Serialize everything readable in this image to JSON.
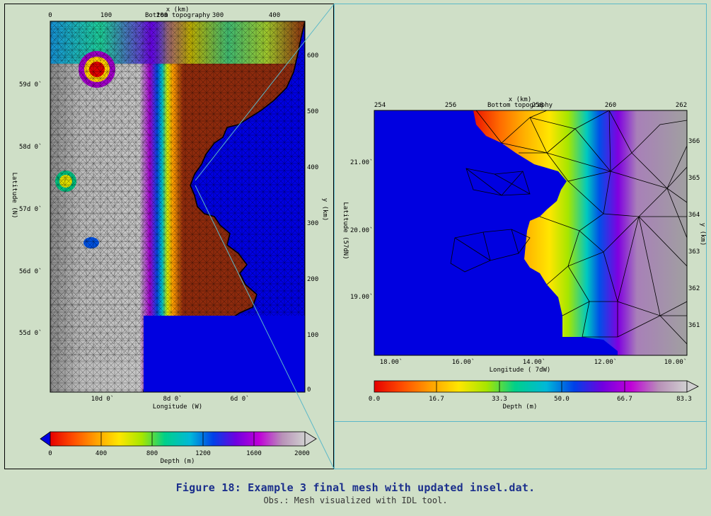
{
  "chart_data": [
    {
      "type": "heatmap",
      "title": "Bottom topography",
      "xlabel": "Longitude (W)",
      "ylabel": "Latitude (N)",
      "x_km_label": "x (km)",
      "y_km_label": "y (km)",
      "x_km_ticks": [
        "0",
        "100",
        "200",
        "300",
        "400"
      ],
      "y_km_ticks": [
        "0",
        "100",
        "200",
        "300",
        "400",
        "500",
        "600"
      ],
      "lon_ticks": [
        "10d 0`",
        "8d 0`",
        "6d 0`"
      ],
      "lat_ticks": [
        "59d 0`",
        "58d 0`",
        "57d 0`",
        "56d 0`",
        "55d 0`"
      ],
      "colorbar": {
        "label": "Depth (m)",
        "range": [
          0,
          2000
        ],
        "ticks": [
          "0",
          "400",
          "800",
          "1200",
          "1600",
          "2000"
        ],
        "colors": [
          "#e60000",
          "#ff4d00",
          "#ffa000",
          "#ffe600",
          "#a6e600",
          "#00d08a",
          "#00b8d8",
          "#0040e8",
          "#7000e0",
          "#c000d8",
          "#b890b8",
          "#d0d0d0"
        ]
      }
    },
    {
      "type": "heatmap",
      "title": "Bottom topography",
      "xlabel": "Longitude ( 7dW)",
      "ylabel": "Latitude (57dN)",
      "x_km_label": "x (km)",
      "y_km_label": "y (km)",
      "x_km_ticks": [
        "254",
        "256",
        "258",
        "260",
        "262"
      ],
      "y_km_ticks": [
        "366",
        "365",
        "364",
        "363",
        "362",
        "361"
      ],
      "lon_ticks": [
        "18.00`",
        "16.00`",
        "14.00`",
        "12.00`",
        "10.00`"
      ],
      "lat_ticks": [
        "21.00`",
        "20.00`",
        "19.00`"
      ],
      "colorbar": {
        "label": "Depth (m)",
        "range": [
          0,
          83.3
        ],
        "ticks": [
          "0.0",
          "16.7",
          "33.3",
          "50.0",
          "66.7",
          "83.3"
        ],
        "colors": [
          "#e60000",
          "#ff4d00",
          "#ffa000",
          "#ffe600",
          "#a6e600",
          "#00d08a",
          "#00b8d8",
          "#0040e8",
          "#7000e0",
          "#c000d8",
          "#b890b8",
          "#d0d0d0"
        ]
      }
    }
  ],
  "caption": {
    "title": "Figure 18: Example 3 final mesh with updated insel.dat.",
    "note": "Obs.: Mesh visualized with IDL tool."
  },
  "colors": {
    "background": "#cfdfc7",
    "land": "#0000e0",
    "zoom_lines": "#5bb8c8",
    "caption_title": "#1b2f8c"
  }
}
